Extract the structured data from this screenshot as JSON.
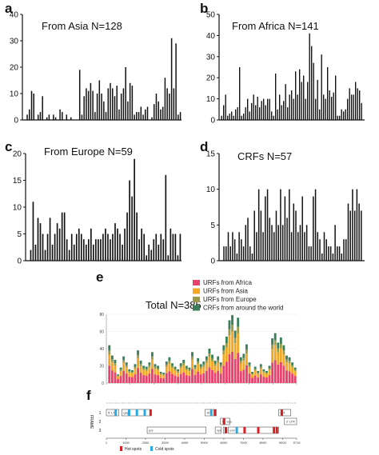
{
  "colors": {
    "bar": "#111111",
    "africa": "#e8416b",
    "asia": "#f5a623",
    "europe": "#9a9a48",
    "world": "#3a7f5a",
    "hot": "#d81f26",
    "cold": "#29a9e0"
  },
  "chart_data": [
    {
      "id": "a",
      "type": "bar",
      "panel_label": "a",
      "title": "From Asia",
      "n_label": "N=128",
      "ylim": [
        0,
        40
      ],
      "yticks": [
        0,
        10,
        20,
        30,
        40
      ],
      "values": [
        0,
        2,
        4,
        11,
        10,
        0,
        2,
        3,
        9,
        0,
        1,
        2,
        0,
        2,
        1,
        0,
        4,
        3,
        0,
        2,
        0,
        1,
        0,
        0,
        0,
        19,
        2,
        9,
        12,
        11,
        14,
        11,
        3,
        10,
        15,
        10,
        7,
        3,
        12,
        14,
        12,
        9,
        13,
        4,
        10,
        12,
        20,
        7,
        14,
        13,
        2,
        3,
        3,
        5,
        2,
        4,
        5,
        0,
        1,
        6,
        10,
        7,
        4,
        5,
        16,
        12,
        10,
        31,
        12,
        29,
        2,
        3
      ]
    },
    {
      "id": "b",
      "type": "bar",
      "panel_label": "b",
      "title": "From Africa",
      "n_label": "N=141",
      "ylim": [
        0,
        50
      ],
      "yticks": [
        0,
        10,
        20,
        30,
        40,
        50
      ],
      "values": [
        2,
        7,
        12,
        2,
        3,
        4,
        2,
        5,
        6,
        25,
        2,
        3,
        6,
        10,
        4,
        8,
        12,
        7,
        11,
        6,
        9,
        10,
        7,
        10,
        10,
        4,
        2,
        22,
        5,
        12,
        7,
        9,
        17,
        6,
        12,
        14,
        10,
        23,
        12,
        24,
        18,
        21,
        10,
        18,
        41,
        35,
        27,
        10,
        19,
        5,
        31,
        12,
        10,
        25,
        14,
        11,
        13,
        21,
        2,
        2,
        5,
        4,
        5,
        10,
        15,
        12,
        12,
        18,
        15,
        14,
        8,
        0
      ]
    },
    {
      "id": "c",
      "type": "bar",
      "panel_label": "c",
      "title": "From Europe",
      "n_label": "N=59",
      "ylim": [
        0,
        20
      ],
      "yticks": [
        0,
        5,
        10,
        15,
        20
      ],
      "values": [
        0,
        2,
        11,
        3,
        8,
        7,
        5,
        2,
        5,
        8,
        3,
        5,
        7,
        6,
        9,
        9,
        4,
        2,
        5,
        3,
        5,
        6,
        5,
        4,
        3,
        4,
        6,
        3,
        4,
        4,
        4,
        5,
        6,
        5,
        4,
        5,
        7,
        6,
        5,
        3,
        6,
        9,
        15,
        12,
        19,
        9,
        4,
        6,
        5,
        1,
        3,
        2,
        4,
        5,
        3,
        5,
        4,
        16,
        1,
        6,
        5,
        5,
        1,
        5
      ]
    },
    {
      "id": "d",
      "type": "bar",
      "panel_label": "d",
      "title": "CRFs",
      "n_label": "N=57",
      "ylim": [
        0,
        15
      ],
      "yticks": [
        0,
        5,
        10,
        15
      ],
      "values": [
        0,
        2,
        2,
        4,
        2,
        4,
        3,
        1,
        4,
        3,
        2,
        5,
        6,
        2,
        1,
        7,
        4,
        10,
        7,
        4,
        9,
        10,
        6,
        5,
        4,
        7,
        5,
        10,
        5,
        9,
        6,
        10,
        4,
        8,
        7,
        4,
        5,
        9,
        4,
        5,
        2,
        2,
        9,
        10,
        4,
        3,
        1,
        4,
        3,
        2,
        2,
        1,
        5,
        2,
        2,
        1,
        3,
        3,
        8,
        7,
        10,
        7,
        10,
        8,
        7,
        0
      ]
    },
    {
      "id": "e",
      "type": "bar",
      "stacked": true,
      "panel_label": "e",
      "title": "Total",
      "n_label": "N=385",
      "ylim": [
        0,
        80
      ],
      "yticks": [
        0,
        20,
        40,
        60,
        80
      ],
      "legend_placement": "top-right",
      "series": [
        {
          "name": "URFs from Africa",
          "color_key": "africa"
        },
        {
          "name": "URFs from Asia",
          "color_key": "asia"
        },
        {
          "name": "URFs from Europe",
          "color_key": "europe"
        },
        {
          "name": "CRFs from around the world",
          "color_key": "world"
        }
      ],
      "totals": [
        44,
        32,
        27,
        10,
        18,
        31,
        24,
        16,
        15,
        22,
        38,
        26,
        20,
        19,
        24,
        36,
        22,
        20,
        13,
        12,
        25,
        30,
        23,
        19,
        16,
        23,
        27,
        20,
        18,
        36,
        21,
        29,
        22,
        25,
        31,
        40,
        33,
        26,
        31,
        24,
        44,
        54,
        73,
        79,
        61,
        76,
        30,
        34,
        45,
        24,
        13,
        19,
        14,
        22,
        16,
        14,
        20,
        52,
        58,
        47,
        53,
        44,
        32,
        30,
        24,
        18
      ]
    },
    {
      "id": "f",
      "type": "genome-map",
      "panel_label": "f",
      "frame_label": "FRAME",
      "frame_numbers": [
        "1",
        "2",
        "3"
      ],
      "axis_ticks": [
        "1",
        "1000",
        "2000",
        "3000",
        "4000",
        "5000",
        "6000",
        "7000",
        "8000",
        "9000",
        "9719"
      ],
      "xlim": [
        1,
        9719
      ],
      "genes": [
        {
          "name": "5' LTR",
          "frame": 1,
          "start": 1,
          "end": 634
        },
        {
          "name": "gag",
          "frame": 1,
          "start": 790,
          "end": 2292
        },
        {
          "name": "pol",
          "frame": 3,
          "start": 2085,
          "end": 5096
        },
        {
          "name": "vif",
          "frame": 1,
          "start": 5041,
          "end": 5619
        },
        {
          "name": "vpr",
          "frame": 3,
          "start": 5559,
          "end": 5850
        },
        {
          "name": "tat",
          "frame": 2,
          "start": 5831,
          "end": 6045
        },
        {
          "name": "rev",
          "frame": 3,
          "start": 5970,
          "end": 6045
        },
        {
          "name": "vpu",
          "frame": 2,
          "start": 6062,
          "end": 6310
        },
        {
          "name": "env",
          "frame": 3,
          "start": 6225,
          "end": 8795
        },
        {
          "name": "nef",
          "frame": 1,
          "start": 8797,
          "end": 9417
        },
        {
          "name": "3' LTR",
          "frame": 2,
          "start": 9086,
          "end": 9719
        }
      ],
      "legend": [
        {
          "label": "Hot spots",
          "color_key": "hot"
        },
        {
          "label": "Cold spots",
          "color_key": "cold"
        }
      ]
    }
  ]
}
